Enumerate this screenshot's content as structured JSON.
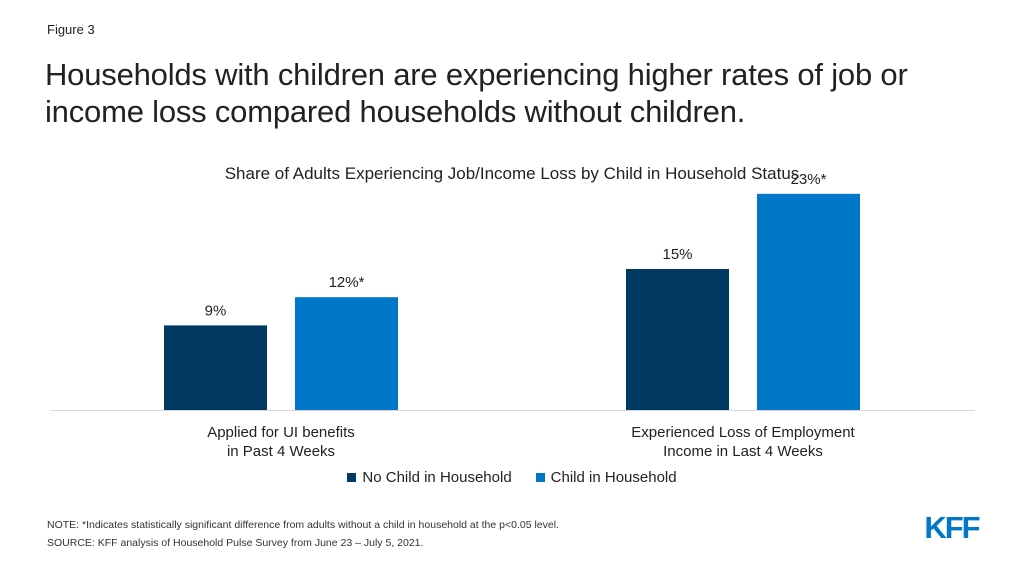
{
  "figure_label": "Figure 3",
  "title": "Households with children are experiencing higher rates of job or income loss compared households without children.",
  "chart_data": {
    "type": "bar",
    "title": "Share of Adults Experiencing Job/Income Loss by Child in Household Status",
    "categories": [
      "Applied for UI benefits in Past 4 Weeks",
      "Experienced Loss of Employment Income in Last 4 Weeks"
    ],
    "category_lines": [
      [
        "Applied for UI benefits",
        "in Past 4 Weeks"
      ],
      [
        "Experienced Loss of Employment",
        "Income in Last 4 Weeks"
      ]
    ],
    "series": [
      {
        "name": "No Child in Household",
        "values": [
          9,
          15
        ],
        "labels": [
          "9%",
          "15%"
        ],
        "color": "#003a63"
      },
      {
        "name": "Child in Household",
        "values": [
          12,
          23
        ],
        "labels": [
          "12%*",
          "23%*"
        ],
        "color": "#0077c8"
      }
    ],
    "ylim": [
      0,
      25
    ],
    "grid": false,
    "legend_position": "bottom"
  },
  "note": "NOTE: *Indicates statistically significant difference from adults without a child in household at the p<0.05 level.",
  "source": "SOURCE: KFF analysis of Household Pulse Survey from June 23 – July 5, 2021.",
  "logo_text": "KFF"
}
